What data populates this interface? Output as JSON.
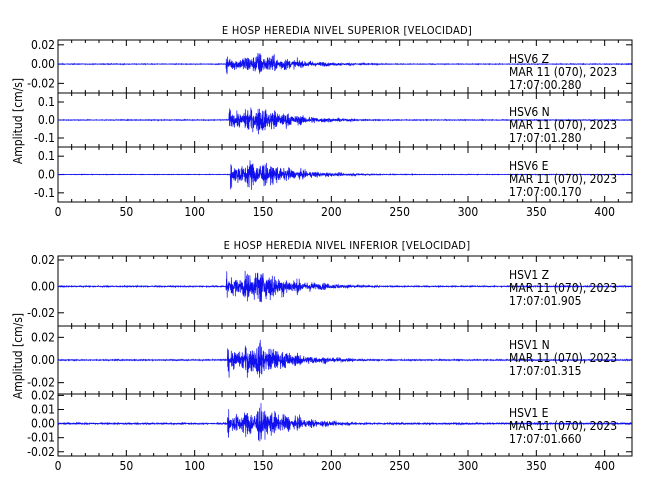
{
  "chart_data": [
    {
      "type": "line",
      "title": "E HOSP HEREDIA NIVEL SUPERIOR [VELOCIDAD]",
      "xlabel": "",
      "ylabel": "Amplitud [cm/s]",
      "xlim": [
        0,
        420
      ],
      "xticks": [
        "0",
        "50",
        "100",
        "150",
        "200",
        "250",
        "300",
        "350",
        "400"
      ],
      "grid": false,
      "color": "#1010ee",
      "panels": [
        {
          "station": "HSV6",
          "component": "Z",
          "date": "MAR 11 (070), 2023",
          "time": "17:07:00.280",
          "ylim": [
            -0.03,
            0.025
          ],
          "yticks": [
            "0.02",
            "0.00",
            "-0.02"
          ],
          "onset": 123,
          "peak_time": 148,
          "peak_amplitude": 0.02,
          "noise_amplitude": 0.0005
        },
        {
          "station": "HSV6",
          "component": "N",
          "date": "MAR 11 (070), 2023",
          "time": "17:07:01.280",
          "ylim": [
            -0.15,
            0.15
          ],
          "yticks": [
            "0.1",
            "0.0",
            "-0.1"
          ],
          "onset": 125,
          "peak_time": 146,
          "peak_amplitude": 0.13,
          "noise_amplitude": 0.003
        },
        {
          "station": "HSV6",
          "component": "E",
          "date": "MAR 11 (070), 2023",
          "time": "17:07:00.170",
          "ylim": [
            -0.15,
            0.15
          ],
          "yticks": [
            "0.1",
            "0.0",
            "-0.1"
          ],
          "onset": 126,
          "peak_time": 143,
          "peak_amplitude": 0.14,
          "noise_amplitude": 0.002
        }
      ]
    },
    {
      "type": "line",
      "title": "E HOSP HEREDIA NIVEL INFERIOR [VELOCIDAD]",
      "xlabel": "",
      "ylabel": "Amplitud [cm/s]",
      "xlim": [
        0,
        420
      ],
      "xticks": [
        "0",
        "50",
        "100",
        "150",
        "200",
        "250",
        "300",
        "350",
        "400"
      ],
      "grid": false,
      "color": "#1010ee",
      "panels": [
        {
          "station": "HSV1",
          "component": "Z",
          "date": "MAR 11 (070), 2023",
          "time": "17:07:01.905",
          "ylim": [
            -0.03,
            0.023
          ],
          "yticks": [
            "0.02",
            "0.00",
            "-0.02"
          ],
          "onset": 123,
          "peak_time": 148,
          "peak_amplitude": 0.022,
          "noise_amplitude": 0.0006
        },
        {
          "station": "HSV1",
          "component": "N",
          "date": "MAR 11 (070), 2023",
          "time": "17:07:01.315",
          "ylim": [
            -0.03,
            0.03
          ],
          "yticks": [
            "0.02",
            "0.00",
            "-0.02"
          ],
          "onset": 124,
          "peak_time": 146,
          "peak_amplitude": 0.026,
          "noise_amplitude": 0.0007
        },
        {
          "station": "HSV1",
          "component": "E",
          "date": "MAR 11 (070), 2023",
          "time": "17:07:01.660",
          "ylim": [
            -0.023,
            0.021
          ],
          "yticks": [
            "0.02",
            "0.01",
            "0.00",
            "-0.01",
            "-0.02"
          ],
          "onset": 124,
          "peak_time": 147,
          "peak_amplitude": 0.02,
          "noise_amplitude": 0.0008
        }
      ]
    }
  ]
}
